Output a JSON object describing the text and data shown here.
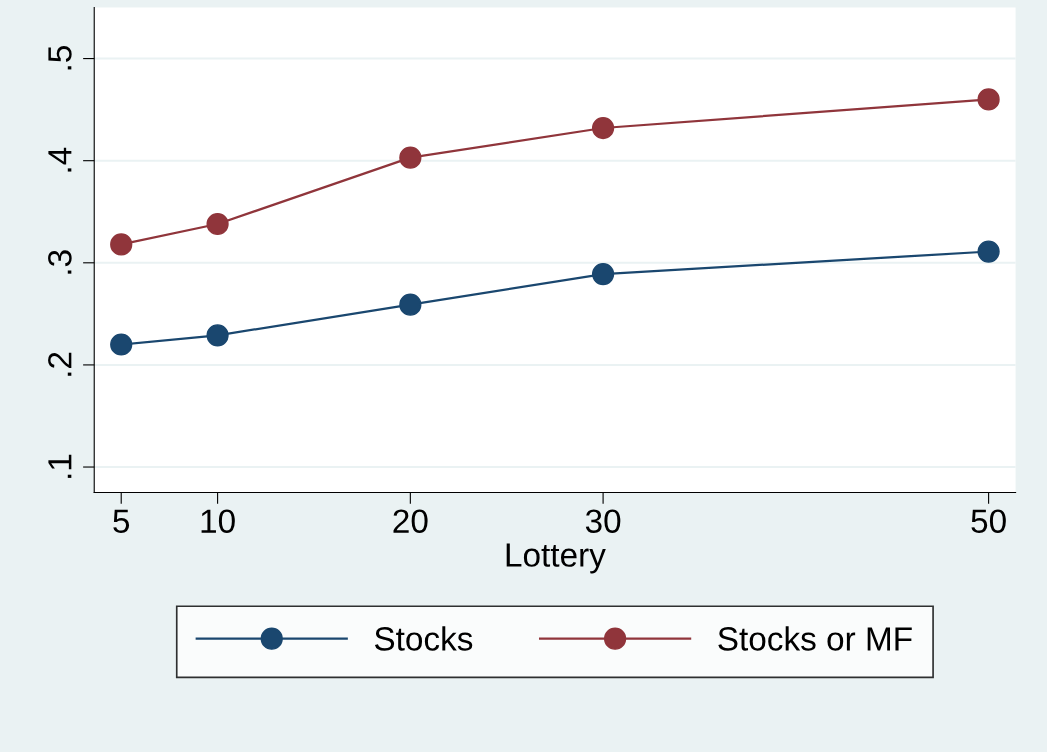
{
  "chart_data": {
    "type": "line",
    "xlabel": "Lottery",
    "x": [
      5,
      10,
      20,
      30,
      50
    ],
    "series": [
      {
        "name": "Stocks",
        "color": "#1a476f",
        "values": [
          0.22,
          0.229,
          0.259,
          0.289,
          0.311
        ]
      },
      {
        "name": "Stocks or MF",
        "color": "#90353b",
        "values": [
          0.318,
          0.338,
          0.403,
          0.432,
          0.46
        ]
      }
    ],
    "xlim": [
      3.6,
      51.4
    ],
    "xticks": [
      5,
      10,
      20,
      30,
      50
    ],
    "ylim": [
      0.075,
      0.55
    ],
    "yticks": [
      {
        "value": 0.1,
        "label": ".1"
      },
      {
        "value": 0.2,
        "label": ".2"
      },
      {
        "value": 0.3,
        "label": ".3"
      },
      {
        "value": 0.4,
        "label": ".4"
      },
      {
        "value": 0.5,
        "label": ".5"
      }
    ],
    "grid": "y",
    "legend": "bottom",
    "marker": "circle",
    "line_style": "solid"
  }
}
